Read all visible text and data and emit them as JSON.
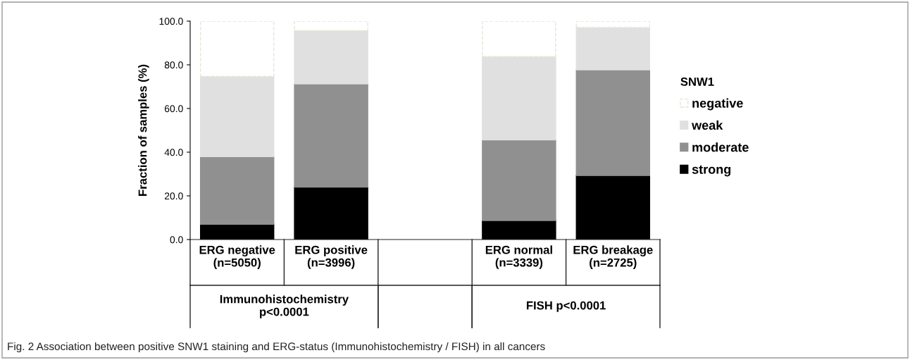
{
  "chart_data": {
    "type": "bar",
    "stacked": true,
    "categories": [
      "ERG negative\n(n=5050)",
      "ERG positive\n(n=3996)",
      null,
      "ERG normal\n(n=3339)",
      "ERG breakage\n(n=2725)"
    ],
    "series": [
      {
        "name": "strong",
        "color": "#000000",
        "values": [
          7.0,
          24.0,
          null,
          8.7,
          29.3
        ]
      },
      {
        "name": "moderate",
        "color": "#909090",
        "values": [
          31.0,
          47.3,
          null,
          36.9,
          48.4
        ]
      },
      {
        "name": "weak",
        "color": "#e0e0e0",
        "values": [
          36.7,
          24.4,
          null,
          38.2,
          19.4
        ]
      },
      {
        "name": "negative",
        "color": "#ffffff",
        "values": [
          25.3,
          4.3,
          null,
          16.2,
          2.9
        ]
      }
    ],
    "ylabel": "Fraction of samples (%)",
    "legend_title": "SNW1",
    "legend": "right",
    "ylim": [
      0,
      100
    ],
    "yticks": [
      {
        "value": 0,
        "label": "0.0"
      },
      {
        "value": 20,
        "label": "20.0"
      },
      {
        "value": 40,
        "label": "40.0"
      },
      {
        "value": 60,
        "label": "60.0"
      },
      {
        "value": 80,
        "label": "80.0"
      },
      {
        "value": 100,
        "label": "100.0"
      }
    ],
    "annotations": [
      "Immunohistochemistry\np<0.0001",
      "FISH p<0.0001",
      "Fig. 2 Association between positive SNW1 staining and ERG-status (Immunohistochemistry / FISH) in all cancers"
    ]
  }
}
